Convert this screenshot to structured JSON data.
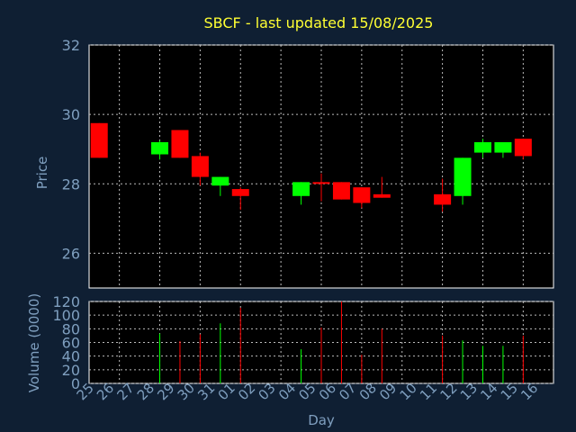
{
  "chart_data": [
    {
      "type": "candlestick",
      "title": "SBCF - last updated 15/08/2025",
      "ylabel": "Price",
      "ylim": [
        25,
        32
      ],
      "yticks": [
        26,
        28,
        30,
        32
      ],
      "grid": true,
      "up_color": "#00ff00",
      "down_color": "#ff0000",
      "candles": [
        {
          "day": "25",
          "open": 29.75,
          "high": 29.75,
          "low": 28.75,
          "close": 28.75
        },
        {
          "day": "28",
          "open": 28.85,
          "high": 29.25,
          "low": 28.7,
          "close": 29.2
        },
        {
          "day": "29",
          "open": 29.55,
          "high": 29.55,
          "low": 28.75,
          "close": 28.75
        },
        {
          "day": "30",
          "open": 28.8,
          "high": 28.9,
          "low": 27.95,
          "close": 28.2
        },
        {
          "day": "31",
          "open": 27.95,
          "high": 28.2,
          "low": 27.65,
          "close": 28.2
        },
        {
          "day": "01",
          "open": 27.85,
          "high": 27.9,
          "low": 27.25,
          "close": 27.65
        },
        {
          "day": "04",
          "open": 27.65,
          "high": 28.05,
          "low": 27.4,
          "close": 28.05
        },
        {
          "day": "05",
          "open": 28.05,
          "high": 28.3,
          "low": 27.5,
          "close": 28.0
        },
        {
          "day": "06",
          "open": 28.05,
          "high": 28.05,
          "low": 27.55,
          "close": 27.55
        },
        {
          "day": "07",
          "open": 27.9,
          "high": 27.9,
          "low": 27.3,
          "close": 27.45
        },
        {
          "day": "08",
          "open": 27.7,
          "high": 28.2,
          "low": 27.6,
          "close": 27.6
        },
        {
          "day": "11",
          "open": 27.7,
          "high": 28.15,
          "low": 27.2,
          "close": 27.4
        },
        {
          "day": "12",
          "open": 27.65,
          "high": 28.75,
          "low": 27.4,
          "close": 28.75
        },
        {
          "day": "13",
          "open": 28.9,
          "high": 29.3,
          "low": 28.75,
          "close": 29.2
        },
        {
          "day": "14",
          "open": 28.9,
          "high": 29.2,
          "low": 28.75,
          "close": 29.2
        },
        {
          "day": "15",
          "open": 29.3,
          "high": 29.3,
          "low": 28.7,
          "close": 28.8
        }
      ]
    },
    {
      "type": "bar",
      "ylabel": "Volume (0000)",
      "xlabel": "Day",
      "ylim": [
        0,
        120
      ],
      "yticks": [
        0,
        20,
        40,
        60,
        80,
        100,
        120
      ],
      "grid": true,
      "categories": [
        "25",
        "26",
        "27",
        "28",
        "29",
        "30",
        "31",
        "01",
        "02",
        "03",
        "04",
        "05",
        "06",
        "07",
        "08",
        "09",
        "10",
        "11",
        "12",
        "13",
        "14",
        "15",
        "16"
      ],
      "values": [
        0,
        0,
        0,
        73,
        62,
        72,
        88,
        111,
        0,
        0,
        50,
        82,
        120,
        42,
        80,
        0,
        0,
        70,
        63,
        55,
        55,
        70,
        0
      ],
      "bar_colors": [
        "",
        "",
        "",
        "#00ff00",
        "#ff0000",
        "#ff0000",
        "#00ff00",
        "#ff0000",
        "",
        "",
        "#00ff00",
        "#ff0000",
        "#ff0000",
        "#ff0000",
        "#ff0000",
        "",
        "",
        "#ff0000",
        "#00ff00",
        "#00ff00",
        "#00ff00",
        "#ff0000",
        ""
      ]
    }
  ]
}
